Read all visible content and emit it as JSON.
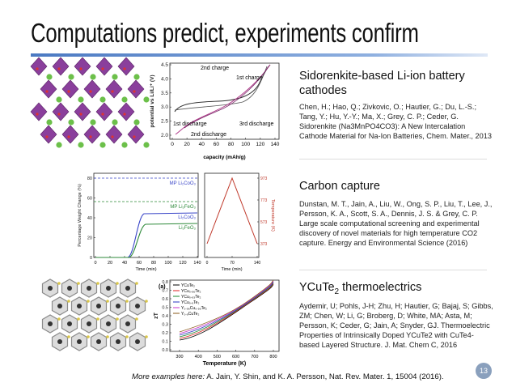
{
  "header": {
    "title": "Computations predict, experiments confirm"
  },
  "sections": [
    {
      "heading": "Sidorenkite-based Li-ion battery cathodes",
      "citation": "Chen, H.; Hao, Q.; Zivkovic, O.; Hautier, G.; Du, L.-S.; Tang, Y.; Hu, Y.-Y.; Ma, X.; Grey, C. P.; Ceder, G. Sidorenkite (Na3MnPO4CO3): A New Intercalation Cathode Material for Na-Ion Batteries, Chem. Mater., 2013",
      "figure": {
        "y_label": "potential vs Li/Li⁺ (V)",
        "x_label": "capacity (mAh/g)",
        "y_ticks": [
          "4.5",
          "4.0",
          "3.5",
          "3.0",
          "2.5",
          "2.0"
        ],
        "x_ticks": [
          "0",
          "20",
          "40",
          "60",
          "80",
          "100",
          "120",
          "140"
        ],
        "annotations": [
          "2nd charge",
          "1st charge",
          "1st discharge",
          "3rd discharge",
          "2nd discharge"
        ]
      }
    },
    {
      "heading": "Carbon capture",
      "citation": "Dunstan, M. T., Jain, A., Liu, W., Ong, S. P., Liu, T., Lee, J., Persson, K. A., Scott, S. A., Dennis, J. S. & Grey, C. P. Large scale computational screening and experimental discovery of novel materials for high temperature CO2 capture. Energy and Environmental Science (2016)",
      "figure": {
        "y_label": "Percentage Weight Change (%)",
        "x_label": "Time (min)",
        "y_ticks": [
          "80",
          "60",
          "40",
          "20",
          "0"
        ],
        "x_ticks": [
          "0",
          "20",
          "40",
          "60",
          "80",
          "100",
          "120",
          "140"
        ],
        "annotations": [
          "MP Li₂CoO₃",
          "MP Li₂FeO₃",
          "Li₂CoO₃",
          "Li₂FeO₃"
        ]
      },
      "figure_b": {
        "y_label": "Temperature (K)",
        "x_label": "Time (min)",
        "y_ticks": [
          "973",
          "773",
          "573",
          "373"
        ],
        "x_ticks": [
          "0",
          "70",
          "140"
        ]
      }
    },
    {
      "heading_main": "YCuTe",
      "heading_sub": "2",
      "heading_rest": "thermoelectrics",
      "citation": "Aydemir, U; Pohls, J-H; Zhu, H; Hautier, G; Bajaj, S; Gibbs, ZM; Chen, W; Li, G; Broberg, D; White, MA; Asta, M; Persson, K; Ceder, G; Jain, A; Snyder, GJ. Thermoelectric Properties of Intrinsically Doped YCuTe2 with CuTe4-based Layered Structure. J. Mat. Chem C, 2016",
      "figure": {
        "panel": "(a)",
        "y_label": "zT",
        "x_label": "Temperature (K)",
        "y_ticks": [
          "0.8",
          "0.7",
          "0.6",
          "0.5",
          "0.4",
          "0.3",
          "0.2",
          "0.1",
          "0.0"
        ],
        "x_ticks": [
          "300",
          "400",
          "500",
          "600",
          "700",
          "800"
        ],
        "legend": [
          "YCuTe₂",
          "YCu₀.₉₆Te₂",
          "YCu₀.₉₃Te₂",
          "YCu₀.₉Te₂",
          "Y₀.₉₆Cu₀.₉₆Te₂",
          "Y₀.₉CuTe₂"
        ]
      }
    }
  ],
  "footer": {
    "lead": "More examples here:",
    "text": "A. Jain, Y. Shin, and K. A. Persson, Nat. Rev. Mater. 1, 15004 (2016).",
    "page_number": "13"
  }
}
